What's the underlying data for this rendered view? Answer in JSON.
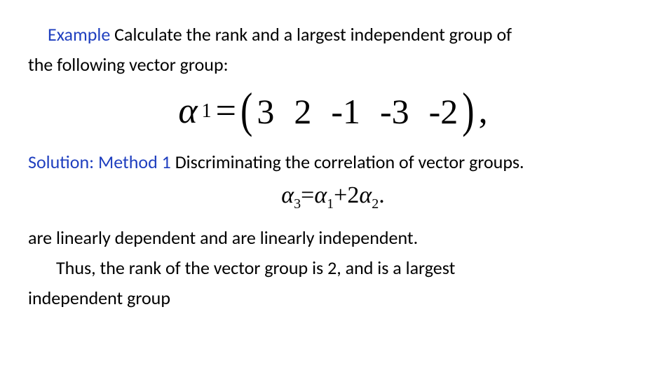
{
  "colors": {
    "blue": "#1f3fbf",
    "black": "#000000",
    "background": "#ffffff"
  },
  "typography": {
    "body_font": "Calibri",
    "math_font": "Cambria Math",
    "body_size_pt": 20,
    "eq_large_size_pt": 40,
    "eq_small_size_pt": 26
  },
  "line1": {
    "kw": "Example",
    "rest": " Calculate the rank and a largest independent group of"
  },
  "line2": "the following vector group:",
  "vector_eq": {
    "lhs_sym": "α",
    "lhs_sub": "1",
    "eq": "=",
    "values": [
      "3",
      "2",
      "-1",
      "-3",
      "-2"
    ],
    "trail": ","
  },
  "sol": {
    "kw": "Solution: Method 1",
    "rest": " Discriminating the correlation of vector groups."
  },
  "rel_eq": {
    "a": "α",
    "s3": "3",
    "eq": "=",
    "s1": "1",
    "plus": "+2",
    "s2": "2",
    "dot": "."
  },
  "line_dep": "are linearly dependent and  are linearly independent.",
  "line_thus1": "Thus, the rank of the vector group is 2, and  is a largest",
  "line_thus2": "independent group"
}
